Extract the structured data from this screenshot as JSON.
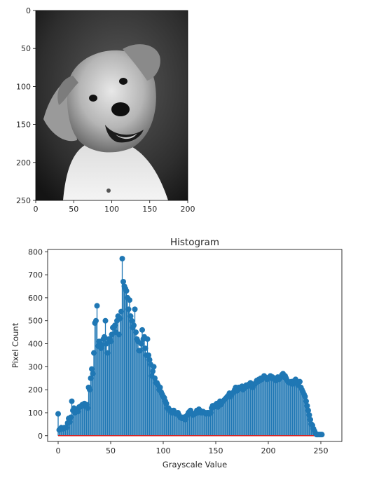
{
  "chart_data": [
    {
      "type": "image",
      "image_content": "grayscale photo of a smiling dog with head tilted",
      "x_ticks": [
        "0",
        "50",
        "100",
        "150",
        "200"
      ],
      "y_ticks": [
        "0",
        "50",
        "100",
        "150",
        "200",
        "250"
      ],
      "xlim": [
        0,
        200
      ],
      "ylim": [
        0,
        250
      ],
      "grid": false
    },
    {
      "type": "stem",
      "title": "Histogram",
      "xlabel": "Grayscale Value",
      "ylabel": "Pixel Count",
      "xlim": [
        -10,
        270
      ],
      "ylim": [
        -25,
        810
      ],
      "x_ticks": [
        "0",
        "50",
        "100",
        "150",
        "200",
        "250"
      ],
      "y_ticks": [
        "0",
        "100",
        "200",
        "300",
        "400",
        "500",
        "600",
        "700",
        "800"
      ],
      "grid": false,
      "colors": {
        "stem": "#1f77b4",
        "baseline": "#d62728"
      },
      "series": [
        {
          "x_start": 0,
          "values": [
            95,
            25,
            30,
            35,
            30,
            30,
            35,
            35,
            35,
            55,
            75,
            60,
            80,
            150,
            110,
            120,
            100,
            105,
            115,
            105,
            125,
            125,
            130,
            135,
            130,
            140,
            130,
            135,
            120,
            210,
            200,
            250,
            290,
            270,
            360,
            490,
            500,
            565,
            390,
            410,
            400,
            380,
            395,
            420,
            430,
            500,
            400,
            360,
            420,
            420,
            410,
            440,
            470,
            470,
            480,
            450,
            500,
            520,
            440,
            510,
            540,
            770,
            670,
            650,
            640,
            630,
            600,
            550,
            590,
            520,
            500,
            470,
            480,
            550,
            450,
            420,
            410,
            370,
            370,
            400,
            460,
            420,
            430,
            380,
            350,
            420,
            350,
            330,
            310,
            260,
            280,
            300,
            250,
            230,
            230,
            220,
            200,
            210,
            190,
            180,
            170,
            165,
            150,
            140,
            120,
            120,
            110,
            110,
            100,
            100,
            110,
            100,
            95,
            95,
            100,
            90,
            80,
            80,
            75,
            80,
            75,
            70,
            85,
            90,
            100,
            105,
            110,
            95,
            90,
            95,
            95,
            100,
            110,
            100,
            115,
            110,
            100,
            100,
            105,
            100,
            100,
            95,
            100,
            100,
            95,
            100,
            120,
            130,
            125,
            130,
            135,
            140,
            125,
            140,
            150,
            135,
            145,
            150,
            155,
            160,
            165,
            170,
            175,
            185,
            170,
            180,
            185,
            190,
            200,
            210,
            195,
            200,
            210,
            205,
            210,
            215,
            200,
            205,
            210,
            220,
            215,
            220,
            225,
            230,
            215,
            210,
            220,
            225,
            230,
            240,
            235,
            245,
            240,
            250,
            245,
            250,
            260,
            255,
            250,
            245,
            250,
            255,
            260,
            250,
            255,
            250,
            245,
            240,
            250,
            255,
            245,
            250,
            255,
            265,
            270,
            255,
            260,
            250,
            240,
            235,
            230,
            230,
            235,
            225,
            235,
            240,
            245,
            230,
            220,
            230,
            235,
            210,
            200,
            190,
            180,
            170,
            150,
            130,
            110,
            90,
            70,
            50,
            45,
            30,
            20,
            10,
            5,
            5,
            5,
            5,
            5,
            5
          ]
        }
      ]
    }
  ]
}
